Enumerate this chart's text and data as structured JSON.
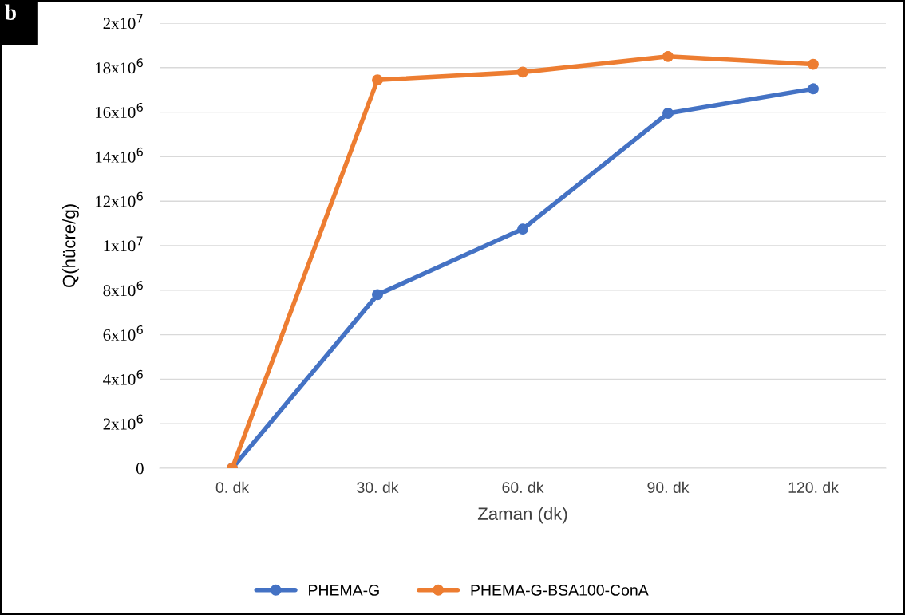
{
  "chart_data": {
    "type": "line",
    "xlabel": "Zaman (dk)",
    "ylabel": "Q(hücre/g)",
    "annotations": [
      "b"
    ],
    "categories": [
      "0. dk",
      "30. dk",
      "60. dk",
      "90. dk",
      "120. dk"
    ],
    "series": [
      {
        "name": "PHEMA-G",
        "color": "#4472c4",
        "values": [
          0,
          7800000,
          10750000,
          15950000,
          17050000
        ]
      },
      {
        "name": "PHEMA-G-BSA100-ConA",
        "color": "#ed7d31",
        "values": [
          0,
          17450000,
          17800000,
          18500000,
          18150000
        ]
      }
    ],
    "ylim": [
      0,
      20000000
    ],
    "yticks": [
      {
        "value": 0,
        "label": "0"
      },
      {
        "value": 2000000,
        "label": "2x10$^{6}$"
      },
      {
        "value": 4000000,
        "label": "4x10$^{6}$"
      },
      {
        "value": 6000000,
        "label": "6x10$^{6}$"
      },
      {
        "value": 8000000,
        "label": "8x10$^{6}$"
      },
      {
        "value": 10000000,
        "label": "1x10$^{7}$"
      },
      {
        "value": 12000000,
        "label": "12x10$^{6}$"
      },
      {
        "value": 14000000,
        "label": "14x10$^{6}$"
      },
      {
        "value": 16000000,
        "label": "16x10$^{6}$"
      },
      {
        "value": 18000000,
        "label": "18x10$^{6}$"
      },
      {
        "value": 20000000,
        "label": "2x10$^{7}$"
      }
    ],
    "grid": "y",
    "legend": "bottom",
    "marker": "circle",
    "line_style": "solid"
  }
}
